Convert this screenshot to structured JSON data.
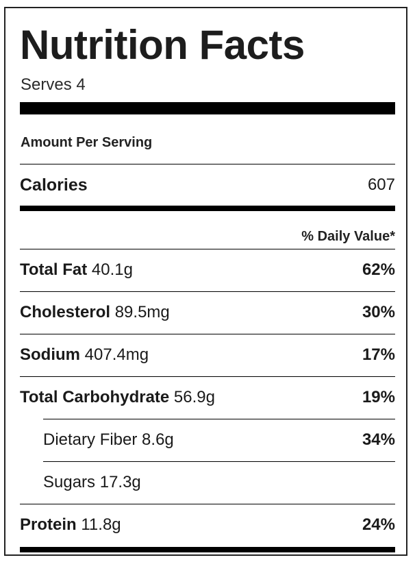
{
  "title": "Nutrition Facts",
  "serves": "Serves 4",
  "amount_per_serving": "Amount Per Serving",
  "calories": {
    "label": "Calories",
    "value": "607"
  },
  "daily_value_header": "% Daily Value*",
  "nutrients": [
    {
      "name": "Total Fat",
      "amount": "40.1g",
      "percent": "62%"
    },
    {
      "name": "Cholesterol",
      "amount": "89.5mg",
      "percent": "30%"
    },
    {
      "name": "Sodium",
      "amount": "407.4mg",
      "percent": "17%"
    },
    {
      "name": "Total Carbohydrate",
      "amount": "56.9g",
      "percent": "19%"
    },
    {
      "name": "Dietary Fiber",
      "amount": "8.6g",
      "percent": "34%"
    },
    {
      "name": "Sugars",
      "amount": "17.3g",
      "percent": ""
    },
    {
      "name": "Protein",
      "amount": "11.8g",
      "percent": "24%"
    }
  ]
}
